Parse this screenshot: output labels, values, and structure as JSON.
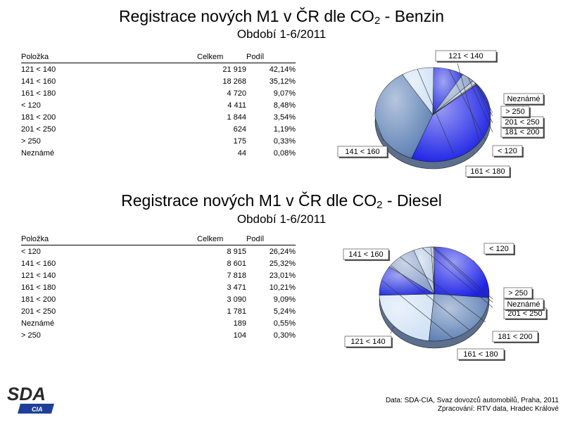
{
  "charts": [
    {
      "title_main": "Registrace nových M1 v ČR dle CO",
      "title_sub": "2",
      "title_suffix": " - Benzin",
      "period": "Období 1-6/2011",
      "headers": [
        "Položka",
        "Celkem",
        "Podíl"
      ],
      "rows": [
        [
          "121 < 140",
          "21 919",
          "42,14%"
        ],
        [
          "141 < 160",
          "18 268",
          "35,12%"
        ],
        [
          "161 < 180",
          "4 720",
          "9,07%"
        ],
        [
          "< 120",
          "4 411",
          "8,48%"
        ],
        [
          "181 < 200",
          "1 844",
          "3,54%"
        ],
        [
          "201 < 250",
          "624",
          "1,19%"
        ],
        [
          "> 250",
          "175",
          "0,33%"
        ],
        [
          "Neznámé",
          "44",
          "0,08%"
        ]
      ]
    },
    {
      "title_main": "Registrace nových M1 v ČR dle CO",
      "title_sub": "2",
      "title_suffix": " - Diesel",
      "period": "Období 1-6/2011",
      "headers": [
        "Položka",
        "Celkem",
        "Podíl"
      ],
      "rows": [
        [
          "< 120",
          "8 915",
          "26,24%"
        ],
        [
          "141 < 160",
          "8 601",
          "25,32%"
        ],
        [
          "121 < 140",
          "7 818",
          "23,01%"
        ],
        [
          "161 < 180",
          "3 471",
          "10,21%"
        ],
        [
          "181 < 200",
          "3 090",
          "9,09%"
        ],
        [
          "201 < 250",
          "1 781",
          "5,24%"
        ],
        [
          "Neznámé",
          "189",
          "0,55%"
        ],
        [
          "> 250",
          "104",
          "0,30%"
        ]
      ]
    }
  ],
  "chart_data": [
    {
      "type": "pie",
      "categories": [
        "121 < 140",
        "141 < 160",
        "161 < 180",
        "< 120",
        "181 < 200",
        "201 < 250",
        "> 250",
        "Neznámé"
      ],
      "values": [
        21919,
        18268,
        4720,
        4411,
        1844,
        624,
        175,
        44
      ],
      "colors": [
        "#1c22e6",
        "#5b7fb4",
        "#d0e2f5",
        "#2a34e0",
        "#8aa0c8",
        "#b9cbe6",
        "#e3ecf8",
        "#f4f8fd"
      ]
    },
    {
      "type": "pie",
      "categories": [
        "< 120",
        "141 < 160",
        "121 < 140",
        "161 < 180",
        "181 < 200",
        "201 < 250",
        "Neznámé",
        "> 250"
      ],
      "values": [
        8915,
        8601,
        7818,
        3471,
        3090,
        1781,
        189,
        104
      ],
      "colors": [
        "#1c22e6",
        "#5b7fb4",
        "#d0e2f5",
        "#2a34e0",
        "#8aa0c8",
        "#b9cbe6",
        "#e3ecf8",
        "#f4f8fd"
      ]
    }
  ],
  "footer": {
    "source": "Data: SDA-CIA, Svaz dovozců automobilů, Praha, 2011",
    "processed": "Zpracování: RTV data, Hradec Králové"
  },
  "logo": {
    "top": "SDA",
    "bottom": "CIA"
  }
}
